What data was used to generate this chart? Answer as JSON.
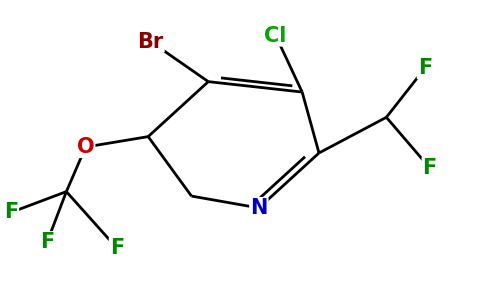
{
  "background_color": "#ffffff",
  "linewidth": 2.0,
  "figsize": [
    4.84,
    3.0
  ],
  "dpi": 100,
  "colors": {
    "bond": "#000000",
    "N": "#0000cc",
    "O": "#cc0000",
    "Br": "#8b0000",
    "Cl": "#00aa00",
    "F": "#008800"
  },
  "fontsize": 15
}
